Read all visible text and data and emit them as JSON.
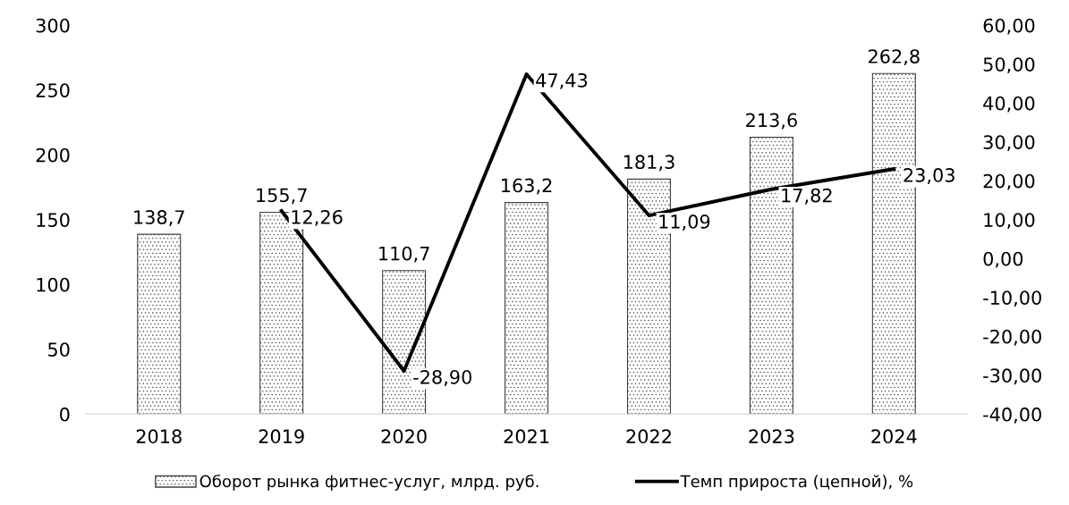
{
  "chart_data": {
    "type": "bar",
    "categories": [
      "2018",
      "2019",
      "2020",
      "2021",
      "2022",
      "2023",
      "2024"
    ],
    "series": [
      {
        "name": "Оборот рынка фитнес-услуг, млрд. руб.",
        "color": "#404040",
        "values": [
          138.7,
          155.7,
          110.7,
          163.2,
          181.3,
          213.6,
          262.8
        ],
        "value_labels": [
          "138,7",
          "155,7",
          "110,7",
          "163,2",
          "181,3",
          "213,6",
          "262,8"
        ]
      },
      {
        "name": "Темп прироста (цепной), %",
        "type": "line",
        "axis": "y2",
        "color": "#000000",
        "values": [
          null,
          12.26,
          -28.9,
          47.43,
          11.09,
          17.82,
          23.03
        ],
        "value_labels": [
          null,
          "12,26",
          "-28,90",
          "47,43",
          "11,09",
          "17,82",
          "23,03"
        ]
      }
    ],
    "ylim": [
      0,
      300
    ],
    "yticks": [
      0,
      50,
      100,
      150,
      200,
      250,
      300
    ],
    "y2lim": [
      -40,
      60
    ],
    "y2ticks": [
      {
        "value": -40,
        "label": "-40,00"
      },
      {
        "value": -30,
        "label": "-30,00"
      },
      {
        "value": -20,
        "label": "-20,00"
      },
      {
        "value": -10,
        "label": "-10,00"
      },
      {
        "value": 0,
        "label": "0,00"
      },
      {
        "value": 10,
        "label": "10,00"
      },
      {
        "value": 20,
        "label": "20,00"
      },
      {
        "value": 30,
        "label": "30,00"
      },
      {
        "value": 40,
        "label": "40,00"
      },
      {
        "value": 50,
        "label": "50,00"
      },
      {
        "value": 60,
        "label": "60,00"
      }
    ],
    "grid": false,
    "legend": "bottom",
    "marker": "none",
    "line_style": "solid"
  }
}
